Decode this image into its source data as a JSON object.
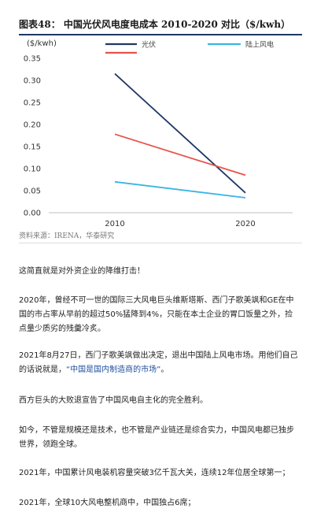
{
  "figure": {
    "title": "图表48：  中国光伏风电度电成本 2010-2020 对比（$/kwh）",
    "source": "资料来源：IRENA，华泰研究"
  },
  "chart_data": {
    "type": "line",
    "ylabel": "($/kwh)",
    "categories": [
      "2010",
      "2020"
    ],
    "ylim": [
      0,
      0.35
    ],
    "yticks": [
      "0.00",
      "0.05",
      "0.10",
      "0.15",
      "0.20",
      "0.25",
      "0.30",
      "0.35"
    ],
    "grid": false,
    "legend_position": "top",
    "series": [
      {
        "name": "光伏",
        "values": [
          0.315,
          0.045
        ],
        "color": "#1f3864"
      },
      {
        "name": "陆上风电",
        "values": [
          0.07,
          0.034
        ],
        "color": "#3cb4e6"
      },
      {
        "name": "",
        "values": [
          0.178,
          0.085
        ],
        "color": "#e8534b"
      }
    ]
  },
  "article": {
    "p1": "这简直就是对外资企业的降维打击！",
    "p2": "2020年，曾经不可一世的国际三大风电巨头维斯塔斯、西门子歌美飒和GE在中国的市占率从早前的超过50%猛降到4%，只能在本土企业的胃口饭量之外，捡点量少质劣的残羹冷炙。",
    "p3_a": "2021年8月27日，西门子歌美飒做出决定，退出中国陆上风电市场。用他们自己的话说就是，",
    "p3_highlight": "“中国是国内制造商的市场”",
    "p3_b": "。",
    "p4": "西方巨头的大败退宣告了中国风电自主化的完全胜利。",
    "p5": "如今，不管是规模还是技术，也不管是产业链还是综合实力，中国风电都已独步世界，领跑全球。",
    "p6": "2021年，中国累计风电装机容量突破3亿千瓦大关，连续12年位居全球第一；",
    "p7": "2021年，全球10大风电整机商中，中国独占6席；"
  }
}
